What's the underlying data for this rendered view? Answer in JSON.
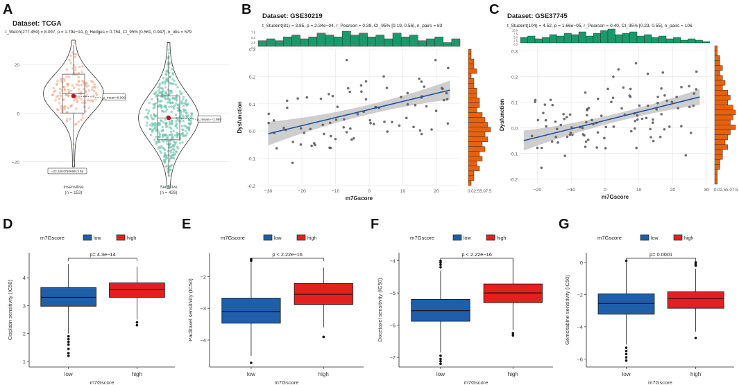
{
  "colors": {
    "low": "#1f5faa",
    "high": "#e4201f",
    "insensitive": "#f4a582",
    "sensitive": "#66c2a5",
    "histGreen": "#1a9a6c",
    "histOrange": "#e6620f",
    "regLine": "#1f4fa0",
    "ci": "#bdbdbd",
    "point": "#555555",
    "meanDot": "#b2182b"
  },
  "panel_letters": [
    "A",
    "B",
    "C",
    "D",
    "E",
    "F",
    "G"
  ],
  "chart_data": [
    {
      "panel": "A",
      "type": "violin-box",
      "title": "Dataset: TCGA",
      "subtitle": "t_Welch(277.459) = 8.097, p = 1.79e−14, ĝ_Hedges = 0.754, CI_95% [0.561, 0.947], n_obs = 579",
      "ylim": [
        -27,
        30
      ],
      "yticks": [
        -20,
        0,
        20
      ],
      "groups": [
        {
          "label": "Insensitive",
          "n_label": "(n = 153)",
          "n": 153,
          "center": 8,
          "sd": 8,
          "q1": 0,
          "median": 8,
          "q3": 16,
          "wlo": -20,
          "whi": 28,
          "min": -22.15,
          "max": 30,
          "mean": 6.999,
          "mean_label": "μ_mean=6.999",
          "min_label": "−22.150475069913 68",
          "color_key": "insensitive"
        },
        {
          "label": "Sensitive",
          "n_label": "(n = 426)",
          "n": 426,
          "center": -2,
          "sd": 10,
          "q1": -11,
          "median": -2,
          "q3": 7,
          "wlo": -26,
          "whi": 24,
          "min": -31,
          "max": 29,
          "mean": -1.985,
          "mean_label": "μ_mean=−1.985",
          "color_key": "sensitive"
        }
      ]
    },
    {
      "panel": "B",
      "type": "scatter-marginal",
      "title": "Dataset: GSE30219",
      "subtitle": "t_Student(81) = 3.85, p = 2.34e−04, r_Pearson = 0.39, CI_95% [0.19, 0.56], n_pairs = 83",
      "xlabel": "m7Gscore",
      "ylabel": "Dysfunction",
      "xlim": [
        -33,
        27
      ],
      "ylim": [
        -0.2,
        0.3
      ],
      "xticks": [
        -30,
        -20,
        -10,
        0,
        10,
        20
      ],
      "yticks": [
        -0.2,
        -0.1,
        0.0,
        0.1,
        0.2,
        0.3
      ],
      "ytick_labels": [
        "-0.2",
        "-0.1",
        "0.0",
        "0.1",
        "0.2",
        "0.3"
      ],
      "reg": {
        "x0": -30,
        "y0": -0.01,
        "x1": 24,
        "y1": 0.15,
        "ci": 0.05
      },
      "n_points": 83,
      "top_hist_labels": [
        "7.5",
        "5.0",
        "2.5",
        "0.0"
      ],
      "right_hist_labels": [
        "0.0",
        "2.5",
        "5.0",
        "7.5"
      ],
      "right_hist_text": "0.02.55.07.5",
      "top_hist": [
        3,
        4,
        3,
        5,
        6,
        4,
        5,
        7,
        6,
        5,
        8,
        6,
        7,
        5,
        6,
        4,
        7,
        5,
        6,
        3,
        4,
        5,
        2,
        4
      ],
      "right_hist": [
        1,
        1,
        2,
        2,
        3,
        1,
        2,
        2,
        3,
        3,
        4,
        4,
        3,
        5,
        6,
        7,
        8,
        6,
        7,
        5,
        6,
        4,
        5,
        3,
        4,
        2,
        2,
        1
      ]
    },
    {
      "panel": "C",
      "type": "scatter-marginal",
      "title": "Dataset: GSE37745",
      "subtitle": "t_Student(104) = 4.52, p = 1.66e−05, r_Pearson = 0.40, CI_95% [0.23, 0.55], n_pairs = 106",
      "xlabel": "m7Gscore",
      "ylabel": "Dysfunction",
      "xlim": [
        -25,
        31
      ],
      "ylim": [
        -0.22,
        0.32
      ],
      "xticks": [
        -20,
        -10,
        0,
        10,
        20,
        30
      ],
      "yticks": [
        -0.2,
        -0.1,
        0.0,
        0.1,
        0.2,
        0.3
      ],
      "ytick_labels": [
        "-0.2",
        "-0.1",
        "0.0",
        "0.1",
        "0.2",
        "0.3"
      ],
      "reg": {
        "x0": -24,
        "y0": -0.05,
        "x1": 28,
        "y1": 0.12,
        "ci": 0.045
      },
      "n_points": 106,
      "top_hist_labels": [
        "10.0",
        "7.5",
        "5.0",
        "2.5",
        "0.0"
      ],
      "right_hist_labels": [
        "0.0",
        "2.5",
        "5.0",
        "7.5"
      ],
      "right_hist_text": "0.02.55.07.5",
      "top_hist": [
        4,
        5,
        3,
        4,
        6,
        5,
        7,
        6,
        8,
        5,
        7,
        9,
        10,
        6,
        7,
        8,
        5,
        6,
        4,
        5,
        3,
        4,
        2,
        3,
        2,
        1
      ],
      "right_hist": [
        1,
        1,
        2,
        2,
        3,
        2,
        3,
        4,
        3,
        5,
        6,
        5,
        7,
        8,
        7,
        6,
        8,
        6,
        5,
        4,
        5,
        3,
        3,
        2,
        2,
        1,
        1,
        1
      ]
    },
    {
      "panel": "D",
      "type": "box",
      "legend_title": "m7Gscore",
      "legend": [
        "low",
        "high"
      ],
      "categories": [
        "low",
        "high"
      ],
      "xlabel": "m7Gscore",
      "ylabel": "Cisplatin sensitivity (IC50)",
      "ylim": [
        0.8,
        4.9
      ],
      "yticks": [
        1,
        2,
        3,
        4
      ],
      "pvalue": "p= 4.3e−14",
      "boxes": [
        {
          "q1": 2.98,
          "median": 3.3,
          "q3": 3.65,
          "wlo": 2.0,
          "whi": 4.5,
          "outliers": [
            1.2,
            1.3,
            1.45,
            1.6,
            1.7,
            1.8,
            1.9
          ]
        },
        {
          "q1": 3.3,
          "median": 3.58,
          "q3": 3.82,
          "wlo": 2.5,
          "whi": 4.4,
          "outliers": [
            2.3,
            2.4
          ]
        }
      ]
    },
    {
      "panel": "E",
      "type": "box",
      "legend_title": "m7Gscore",
      "legend": [
        "low",
        "high"
      ],
      "categories": [
        "low",
        "high"
      ],
      "xlabel": "m7Gscore",
      "ylabel": "Paclitaxel sensitivity (IC50)",
      "ylim": [
        -4.85,
        -1.25
      ],
      "yticks": [
        -4,
        -3,
        -2
      ],
      "pvalue": "p < 2.22e−16",
      "boxes": [
        {
          "q1": -3.47,
          "median": -3.1,
          "q3": -2.68,
          "wlo": -4.5,
          "whi": -1.55,
          "outliers": [
            -4.72,
            -1.45,
            -1.5
          ]
        },
        {
          "q1": -2.88,
          "median": -2.56,
          "q3": -2.22,
          "wlo": -3.6,
          "whi": -1.72,
          "outliers": [
            -3.9
          ]
        }
      ]
    },
    {
      "panel": "F",
      "type": "box",
      "legend_title": "m7Gscore",
      "legend": [
        "low",
        "high"
      ],
      "categories": [
        "low",
        "high"
      ],
      "xlabel": "m7Gscore",
      "ylabel": "Docetaxel sensitivity (IC50)",
      "ylim": [
        -7.3,
        -3.75
      ],
      "yticks": [
        -7,
        -6,
        -5,
        -4
      ],
      "pvalue": "p < 2.22e−16",
      "boxes": [
        {
          "q1": -5.88,
          "median": -5.55,
          "q3": -5.2,
          "wlo": -6.85,
          "whi": -4.3,
          "outliers": [
            -7.2,
            -7.12,
            -7.05,
            -6.95,
            -4.0,
            -4.05,
            -4.12,
            -4.2
          ]
        },
        {
          "q1": -5.3,
          "median": -5.0,
          "q3": -4.72,
          "wlo": -6.15,
          "whi": -3.95,
          "outliers": [
            -6.25,
            -6.32
          ]
        }
      ]
    },
    {
      "panel": "G",
      "type": "box",
      "legend_title": "m7Gscore",
      "legend": [
        "low",
        "high"
      ],
      "categories": [
        "low",
        "high"
      ],
      "xlabel": "m7Gscore",
      "ylabel": "Gemcitabine sensitivity (IC50)",
      "ylim": [
        -6.5,
        0.6
      ],
      "yticks": [
        -6,
        -4,
        -2,
        0
      ],
      "pvalue": "p= 0.0001",
      "boxes": [
        {
          "q1": -3.22,
          "median": -2.55,
          "q3": -1.95,
          "wlo": -5.1,
          "whi": 0.0,
          "outliers": [
            -5.3,
            -5.5,
            -5.7,
            -5.9,
            -6.1,
            0.1
          ]
        },
        {
          "q1": -2.85,
          "median": -2.25,
          "q3": -1.82,
          "wlo": -4.3,
          "whi": -0.4,
          "outliers": [
            -4.7,
            -0.1,
            -0.2,
            0.0
          ]
        }
      ]
    }
  ]
}
